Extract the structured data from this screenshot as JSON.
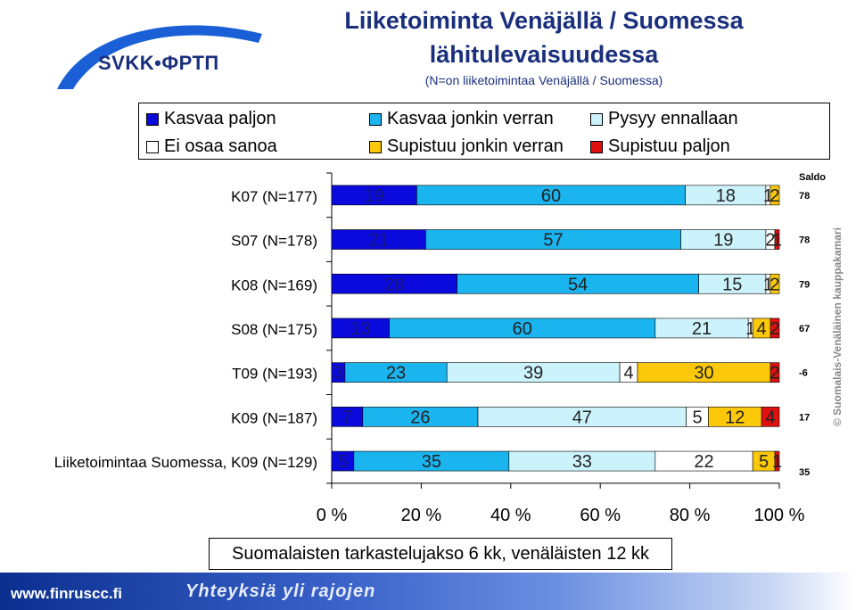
{
  "header": {
    "logo_text": "SVKK•ФРТП",
    "title_line1": "Liiketoiminta Venäjällä / Suomessa",
    "title_line2": "lähitulevaisuudessa",
    "subtitle": "(N=on liiketoimintaa Venäjällä / Suomessa)"
  },
  "legend": [
    {
      "label": "Kasvaa paljon",
      "color": "#0a0adc"
    },
    {
      "label": "Kasvaa jonkin verran",
      "color": "#1ab4ef"
    },
    {
      "label": "Pysyy ennallaan",
      "color": "#ccf2fc"
    },
    {
      "label": "Ei osaa sanoa",
      "color": "#ffffff"
    },
    {
      "label": "Supistuu jonkin verran",
      "color": "#fcc80a"
    },
    {
      "label": "Supistuu paljon",
      "color": "#e01010"
    }
  ],
  "chart_data": {
    "type": "bar",
    "orientation": "horizontal",
    "stacked": "percent",
    "categories": [
      "K07 (N=177)",
      "S07 (N=178)",
      "K08 (N=169)",
      "S08 (N=175)",
      "T09 (N=193)",
      "K09 (N=187)",
      "Liiketoimintaa Suomessa, K09 (N=129)"
    ],
    "series": [
      {
        "name": "Kasvaa paljon",
        "values": [
          19,
          21,
          28,
          13,
          3,
          7,
          5
        ]
      },
      {
        "name": "Kasvaa jonkin verran",
        "values": [
          60,
          57,
          54,
          60,
          23,
          26,
          35
        ]
      },
      {
        "name": "Pysyy ennallaan",
        "values": [
          18,
          19,
          15,
          21,
          39,
          47,
          33
        ]
      },
      {
        "name": "Ei osaa sanoa",
        "values": [
          1,
          2,
          1,
          1,
          4,
          5,
          22
        ]
      },
      {
        "name": "Supistuu jonkin verran",
        "values": [
          2,
          0,
          2,
          4,
          30,
          12,
          5
        ]
      },
      {
        "name": "Supistuu paljon",
        "values": [
          0,
          1,
          0,
          2,
          2,
          4,
          1
        ]
      }
    ],
    "segment_labels": [
      [
        "19",
        "60",
        "18",
        "1",
        "2",
        ""
      ],
      [
        "21",
        "57",
        "19",
        "2",
        "",
        "1"
      ],
      [
        "28",
        "54",
        "15",
        "1",
        "2",
        ""
      ],
      [
        "13",
        "60",
        "21",
        "1",
        "4",
        "2"
      ],
      [
        "3",
        "23",
        "39",
        "4",
        "30",
        "2"
      ],
      [
        "7",
        "26",
        "47",
        "5",
        "12",
        "4"
      ],
      [
        "5",
        "35",
        "33",
        "22",
        "5",
        "1"
      ]
    ],
    "saldo_label": "Saldo",
    "saldo": [
      "78",
      "78",
      "79",
      "67",
      "-6",
      "17",
      "35"
    ],
    "xticks": [
      "0 %",
      "20 %",
      "40 %",
      "60 %",
      "80 %",
      "100 %"
    ],
    "xlim": [
      0,
      100
    ],
    "xlabel": "Suomalaisten tarkastelujakso 6 kk, venäläisten 12 kk"
  },
  "footer": {
    "url": "www.finruscc.fi",
    "slogan": "Yhteyksiä yli rajojen",
    "copyright": "© Suomalais-Venäläinen kauppakamari"
  }
}
